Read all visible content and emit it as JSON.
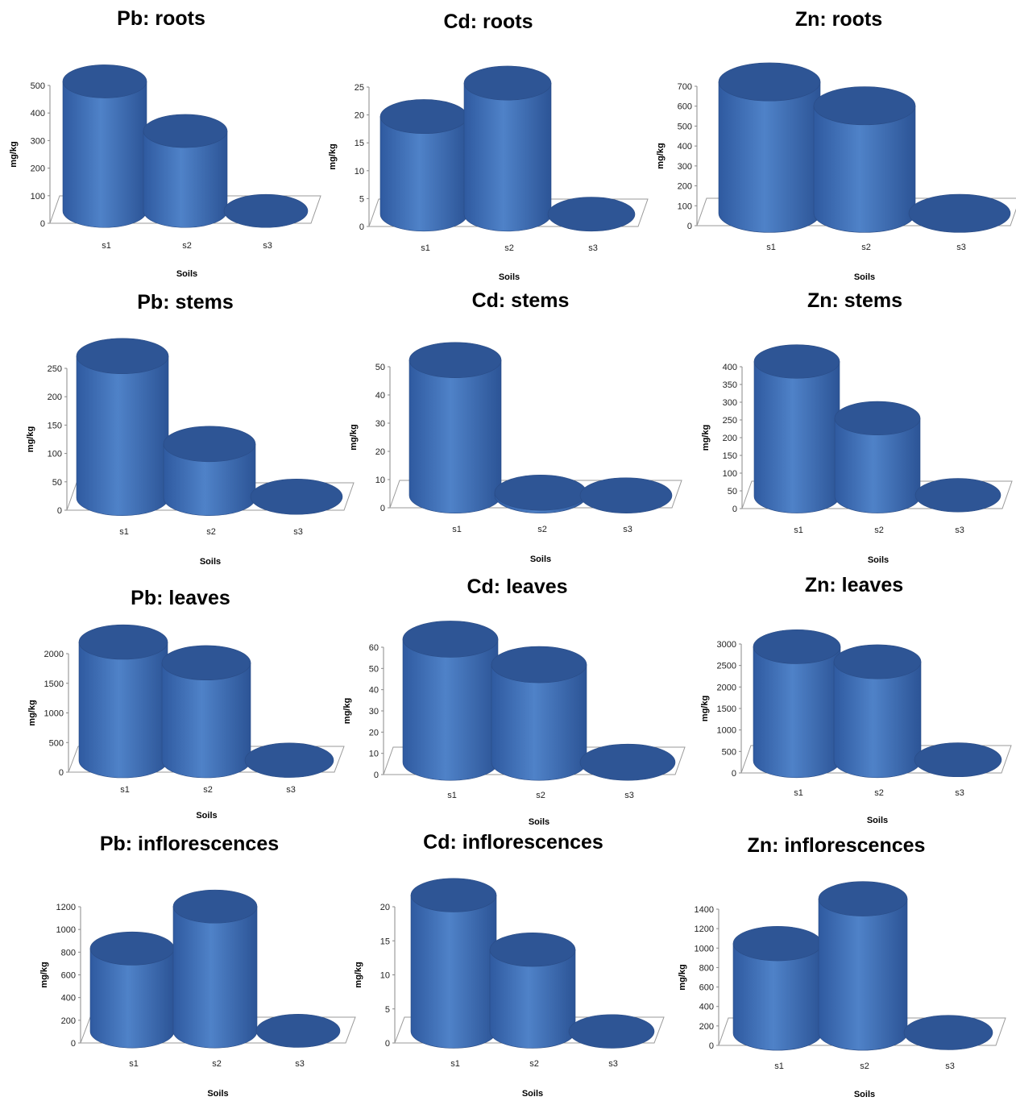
{
  "chart_data": [
    {
      "type": "bar",
      "title": "Pb: roots",
      "xlabel": "Soils",
      "ylabel": "mg/kg",
      "categories": [
        "s1",
        "s2",
        "s3"
      ],
      "values": [
        470,
        290,
        0
      ],
      "ylim": [
        0,
        500
      ],
      "yticks": [
        0,
        100,
        200,
        300,
        400,
        500
      ]
    },
    {
      "type": "bar",
      "title": "Cd: roots",
      "xlabel": "Soils",
      "ylabel": "mg/kg",
      "categories": [
        "s1",
        "s2",
        "s3"
      ],
      "values": [
        17.5,
        23.5,
        0
      ],
      "ylim": [
        0,
        25
      ],
      "yticks": [
        0,
        5,
        10,
        15,
        20,
        25
      ]
    },
    {
      "type": "bar",
      "title": "Zn: roots",
      "xlabel": "Soils",
      "ylabel": "mg/kg",
      "categories": [
        "s1",
        "s2",
        "s3"
      ],
      "values": [
        660,
        540,
        0
      ],
      "ylim": [
        0,
        700
      ],
      "yticks": [
        0,
        100,
        200,
        300,
        400,
        500,
        600,
        700
      ]
    },
    {
      "type": "bar",
      "title": "Pb: stems",
      "xlabel": "Soils",
      "ylabel": "mg/kg",
      "categories": [
        "s1",
        "s2",
        "s3"
      ],
      "values": [
        250,
        95,
        2
      ],
      "ylim": [
        0,
        250
      ],
      "yticks": [
        0,
        50,
        100,
        150,
        200,
        250
      ]
    },
    {
      "type": "bar",
      "title": "Cd: stems",
      "xlabel": "Soils",
      "ylabel": "mg/kg",
      "categories": [
        "s1",
        "s2",
        "s3"
      ],
      "values": [
        48,
        1,
        0
      ],
      "ylim": [
        0,
        50
      ],
      "yticks": [
        0,
        10,
        20,
        30,
        40,
        50
      ]
    },
    {
      "type": "bar",
      "title": "Zn: stems",
      "xlabel": "Soils",
      "ylabel": "mg/kg",
      "categories": [
        "s1",
        "s2",
        "s3"
      ],
      "values": [
        380,
        220,
        3
      ],
      "ylim": [
        0,
        400
      ],
      "yticks": [
        0,
        50,
        100,
        150,
        200,
        250,
        300,
        350,
        400
      ]
    },
    {
      "type": "bar",
      "title": "Pb: leaves",
      "xlabel": "Soils",
      "ylabel": "mg/kg",
      "categories": [
        "s1",
        "s2",
        "s3"
      ],
      "values": [
        2000,
        1650,
        5
      ],
      "ylim": [
        0,
        2000
      ],
      "yticks": [
        0,
        500,
        1000,
        1500,
        2000
      ]
    },
    {
      "type": "bar",
      "title": "Cd: leaves",
      "xlabel": "Soils",
      "ylabel": "mg/kg",
      "categories": [
        "s1",
        "s2",
        "s3"
      ],
      "values": [
        58,
        46,
        0
      ],
      "ylim": [
        0,
        60
      ],
      "yticks": [
        0,
        10,
        20,
        30,
        40,
        50,
        60
      ]
    },
    {
      "type": "bar",
      "title": "Zn: leaves",
      "xlabel": "Soils",
      "ylabel": "mg/kg",
      "categories": [
        "s1",
        "s2",
        "s3"
      ],
      "values": [
        2650,
        2300,
        20
      ],
      "ylim": [
        0,
        3000
      ],
      "yticks": [
        0,
        500,
        1000,
        1500,
        2000,
        2500,
        3000
      ]
    },
    {
      "type": "bar",
      "title": "Pb: inflorescences",
      "xlabel": "Soils",
      "ylabel": "mg/kg",
      "categories": [
        "s1",
        "s2",
        "s3"
      ],
      "values": [
        730,
        1100,
        5
      ],
      "ylim": [
        0,
        1200
      ],
      "yticks": [
        0,
        200,
        400,
        600,
        800,
        1000,
        1200
      ]
    },
    {
      "type": "bar",
      "title": "Cd: inflorescences",
      "xlabel": "Soils",
      "ylabel": "mg/kg",
      "categories": [
        "s1",
        "s2",
        "s3"
      ],
      "values": [
        20,
        12,
        0
      ],
      "ylim": [
        0,
        20
      ],
      "yticks": [
        0,
        5,
        10,
        15,
        20
      ]
    },
    {
      "type": "bar",
      "title": "Zn: inflorescences",
      "xlabel": "Soils",
      "ylabel": "mg/kg",
      "categories": [
        "s1",
        "s2",
        "s3"
      ],
      "values": [
        920,
        1380,
        5
      ],
      "ylim": [
        0,
        1400
      ],
      "yticks": [
        0,
        200,
        400,
        600,
        800,
        1000,
        1200,
        1400
      ]
    }
  ],
  "colors": {
    "bar_side": "#3f6fb6",
    "bar_top": "#2e5595",
    "bar_edge": "#2a4c86",
    "floor": "#9a9a9a"
  }
}
